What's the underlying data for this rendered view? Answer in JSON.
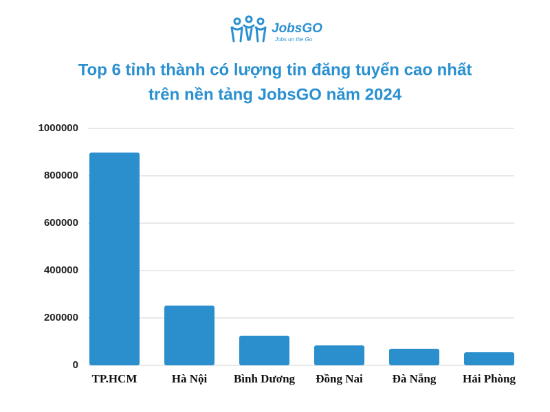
{
  "logo": {
    "name": "JobsGO",
    "tagline": "Jobs on the Go"
  },
  "chart_data": {
    "type": "bar",
    "title": [
      "Top 6 tỉnh thành có lượng tin đăng tuyển cao nhất",
      "trên nền tảng JobsGO năm 2024"
    ],
    "categories": [
      "TP.HCM",
      "Hà Nội",
      "Bình Dương",
      "Đồng Nai",
      "Đà Nẵng",
      "Hải Phòng"
    ],
    "values": [
      898000,
      252000,
      125000,
      84000,
      70000,
      55000
    ],
    "color": "#2b8fcd",
    "ylim": [
      0,
      1000000
    ],
    "yticks": [
      0,
      200000,
      400000,
      600000,
      800000,
      1000000
    ],
    "grid": true
  }
}
